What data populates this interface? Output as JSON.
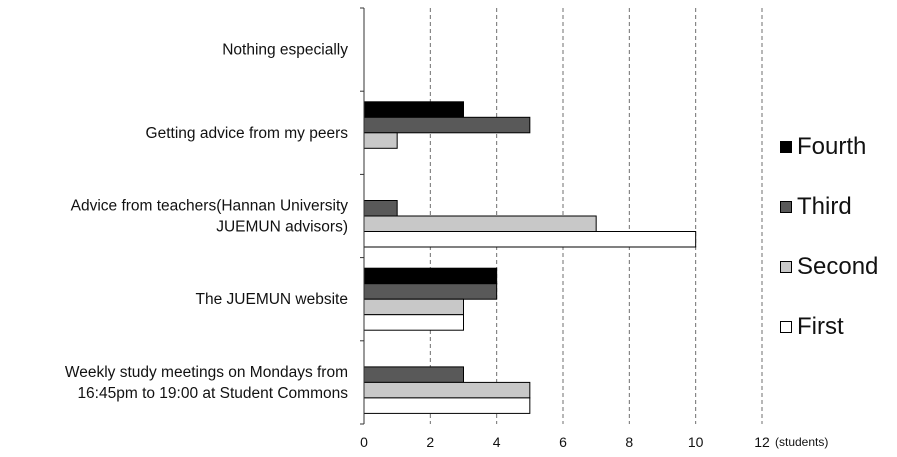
{
  "chart_data": {
    "type": "bar",
    "orientation": "horizontal",
    "categories": [
      "Nothing especially",
      "Getting advice from my peers",
      "Advice from teachers(Hannan University JUEMUN advisors)",
      "The JUEMUN website",
      "Weekly study meetings on Mondays from 16:45pm to 19:00 at Student Commons"
    ],
    "category_lines": [
      [
        "Nothing especially"
      ],
      [
        "Getting advice from my peers"
      ],
      [
        "Advice from teachers(Hannan University",
        "JUEMUN advisors)"
      ],
      [
        "The JUEMUN website"
      ],
      [
        "Weekly study meetings on Mondays from",
        "16:45pm to 19:00 at Student Commons"
      ]
    ],
    "series": [
      {
        "name": "Fourth",
        "color": "#000000",
        "values": [
          0,
          3,
          0,
          4,
          0
        ]
      },
      {
        "name": "Third",
        "color": "#595959",
        "values": [
          0,
          5,
          1,
          4,
          3
        ]
      },
      {
        "name": "Second",
        "color": "#c8c8c8",
        "values": [
          0,
          1,
          7,
          3,
          5
        ]
      },
      {
        "name": "First",
        "color": "#ffffff",
        "values": [
          0,
          0,
          10,
          3,
          5
        ]
      }
    ],
    "x_ticks": [
      "0",
      "2",
      "4",
      "6",
      "8",
      "10",
      "12"
    ],
    "xlim": [
      0,
      12
    ],
    "x_unit": "(students)",
    "grid": "vertical dashed",
    "legend": {
      "placement": "right",
      "order": [
        "Fourth",
        "Third",
        "Second",
        "First"
      ]
    }
  }
}
